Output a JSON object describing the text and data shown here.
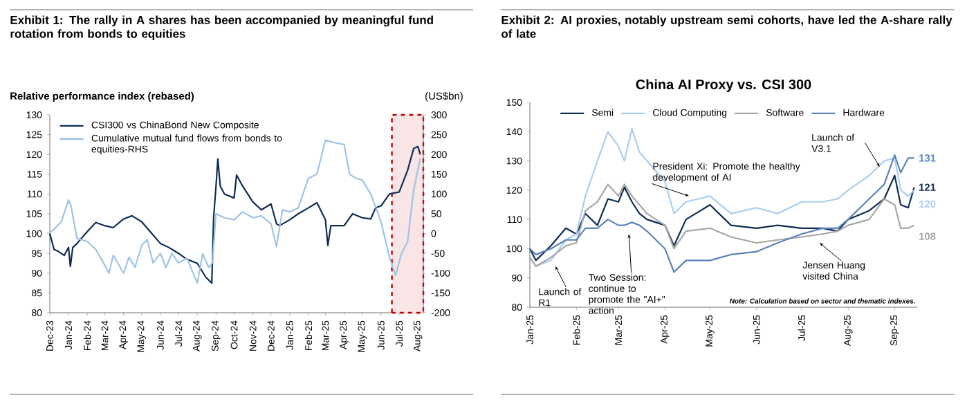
{
  "chart_data": [
    {
      "type": "line",
      "title": "Exhibit 1: The rally in A shares has been accompanied by meaningful fund rotation from bonds to equities",
      "ylabel": "Relative performance index (rebased)",
      "y2label": "(US$bn)",
      "xlim": [
        "2023-12-01",
        "2025-08-10"
      ],
      "xticks": [
        {
          "value": "2023-12-01",
          "label": "Dec-23"
        },
        {
          "value": "2024-01-01",
          "label": "Jan-24"
        },
        {
          "value": "2024-02-01",
          "label": "Feb-24"
        },
        {
          "value": "2024-03-01",
          "label": "Mar-24"
        },
        {
          "value": "2024-04-01",
          "label": "Apr-24"
        },
        {
          "value": "2024-05-01",
          "label": "May-24"
        },
        {
          "value": "2024-06-01",
          "label": "Jun-24"
        },
        {
          "value": "2024-07-01",
          "label": "Jul-24"
        },
        {
          "value": "2024-08-01",
          "label": "Aug-24"
        },
        {
          "value": "2024-09-01",
          "label": "Sep-24"
        },
        {
          "value": "2024-10-01",
          "label": "Oct-24"
        },
        {
          "value": "2024-11-01",
          "label": "Nov-24"
        },
        {
          "value": "2024-12-01",
          "label": "Dec-24"
        },
        {
          "value": "2025-01-01",
          "label": "Jan-25"
        },
        {
          "value": "2025-02-01",
          "label": "Feb-25"
        },
        {
          "value": "2025-03-01",
          "label": "Mar-25"
        },
        {
          "value": "2025-04-01",
          "label": "Apr-25"
        },
        {
          "value": "2025-05-01",
          "label": "May-25"
        },
        {
          "value": "2025-06-01",
          "label": "Jun-25"
        },
        {
          "value": "2025-07-01",
          "label": "Jul-25"
        },
        {
          "value": "2025-08-01",
          "label": "Aug-25"
        }
      ],
      "ylim": [
        80,
        130
      ],
      "yticks": [
        80,
        85,
        90,
        95,
        100,
        105,
        110,
        115,
        120,
        125,
        130
      ],
      "y2lim": [
        -200,
        300
      ],
      "y2ticks": [
        -200,
        -150,
        -100,
        -50,
        0,
        50,
        100,
        150,
        200,
        250,
        300
      ],
      "legend": "top left",
      "bands": [
        {
          "axis": "x",
          "from": "2025-06-19",
          "to": "2025-08-10",
          "color": "#c00000"
        }
      ],
      "series": [
        {
          "name": "CSI300 vs ChinaBond New Composite",
          "color": "#0f2b53",
          "x": [
            "2023-12-01",
            "2023-12-08",
            "2023-12-15",
            "2023-12-25",
            "2024-01-01",
            "2024-01-04",
            "2024-01-08",
            "2024-01-15",
            "2024-02-01",
            "2024-02-15",
            "2024-03-01",
            "2024-03-15",
            "2024-04-01",
            "2024-04-15",
            "2024-05-01",
            "2024-05-15",
            "2024-06-01",
            "2024-06-15",
            "2024-07-01",
            "2024-07-15",
            "2024-08-01",
            "2024-08-15",
            "2024-08-25",
            "2024-08-28",
            "2024-09-01",
            "2024-09-04",
            "2024-09-08",
            "2024-09-15",
            "2024-10-01",
            "2024-10-05",
            "2024-10-15",
            "2024-11-01",
            "2024-11-15",
            "2024-12-01",
            "2024-12-10",
            "2024-12-15",
            "2025-01-01",
            "2025-01-15",
            "2025-02-01",
            "2025-02-15",
            "2025-03-01",
            "2025-03-05",
            "2025-03-10",
            "2025-03-15",
            "2025-04-01",
            "2025-04-15",
            "2025-05-01",
            "2025-05-15",
            "2025-05-23",
            "2025-06-01",
            "2025-06-15",
            "2025-07-01",
            "2025-07-15",
            "2025-07-25",
            "2025-08-01",
            "2025-08-05"
          ],
          "values": [
            100,
            96,
            95.5,
            94.5,
            96.5,
            91.7,
            96.5,
            97.5,
            100.5,
            102.8,
            102,
            101.5,
            103.7,
            104.5,
            103,
            100.5,
            97.5,
            96.5,
            95,
            93.5,
            92.5,
            89,
            87.5,
            104,
            112,
            118.9,
            112,
            110,
            109,
            114.8,
            112,
            108,
            106,
            107.5,
            102.5,
            102,
            103.5,
            105,
            106.5,
            107.8,
            103.5,
            97,
            102,
            102,
            102,
            105,
            104,
            103.7,
            106.5,
            107,
            110,
            110.5,
            116,
            121.5,
            122,
            120
          ]
        },
        {
          "name": "Cumulative mutual fund flows from bonds to equities-RHS",
          "color": "#9dc3e6",
          "axis": "y2",
          "x": [
            "2023-12-01",
            "2023-12-10",
            "2023-12-20",
            "2024-01-01",
            "2024-01-05",
            "2024-01-15",
            "2024-02-01",
            "2024-02-15",
            "2024-03-01",
            "2024-03-08",
            "2024-03-15",
            "2024-04-01",
            "2024-04-10",
            "2024-04-20",
            "2024-05-01",
            "2024-05-10",
            "2024-05-20",
            "2024-06-01",
            "2024-06-10",
            "2024-06-20",
            "2024-07-01",
            "2024-07-15",
            "2024-08-01",
            "2024-08-10",
            "2024-08-20",
            "2024-08-26",
            "2024-09-01",
            "2024-09-15",
            "2024-10-01",
            "2024-10-15",
            "2024-11-01",
            "2024-11-15",
            "2024-12-01",
            "2024-12-10",
            "2024-12-20",
            "2025-01-01",
            "2025-01-15",
            "2025-02-01",
            "2025-02-15",
            "2025-03-01",
            "2025-03-15",
            "2025-04-01",
            "2025-04-10",
            "2025-04-20",
            "2025-05-01",
            "2025-05-15",
            "2025-06-01",
            "2025-06-15",
            "2025-06-25",
            "2025-07-05",
            "2025-07-15",
            "2025-07-25",
            "2025-08-05"
          ],
          "values": [
            2,
            14,
            30,
            85,
            70,
            -12,
            -20,
            -40,
            -80,
            -100,
            -55,
            -100,
            -60,
            -85,
            -30,
            -15,
            -74,
            -50,
            -86,
            -50,
            -74,
            -62,
            -125,
            -51,
            -86,
            -74,
            50,
            40,
            35,
            55,
            40,
            45,
            25,
            -33,
            60,
            55,
            65,
            140,
            150,
            236,
            230,
            225,
            150,
            140,
            135,
            100,
            30,
            -60,
            -105,
            -50,
            -20,
            110,
            190
          ]
        }
      ]
    },
    {
      "type": "line",
      "title": "Exhibit 2: AI proxies, notably upstream semi cohorts, have led the A-share rally of late",
      "subtitle": "China AI Proxy vs. CSI 300",
      "xlim": [
        "2025-01-01",
        "2025-09-16"
      ],
      "xticks": [
        {
          "value": "2025-01-01",
          "label": "Jan-25"
        },
        {
          "value": "2025-02-01",
          "label": "Feb-25"
        },
        {
          "value": "2025-03-01",
          "label": "Mar-25"
        },
        {
          "value": "2025-04-01",
          "label": "Apr-25"
        },
        {
          "value": "2025-05-01",
          "label": "May-25"
        },
        {
          "value": "2025-06-01",
          "label": "Jun-25"
        },
        {
          "value": "2025-07-01",
          "label": "Jul-25"
        },
        {
          "value": "2025-08-01",
          "label": "Aug-25"
        },
        {
          "value": "2025-09-01",
          "label": "Sep-25"
        }
      ],
      "ylim": [
        80,
        150
      ],
      "yticks": [
        80,
        90,
        100,
        110,
        120,
        130,
        140,
        150
      ],
      "legend": "top",
      "x": [
        "2025-01-01",
        "2025-01-05",
        "2025-01-15",
        "2025-01-25",
        "2025-02-01",
        "2025-02-07",
        "2025-02-15",
        "2025-02-22",
        "2025-03-01",
        "2025-03-05",
        "2025-03-10",
        "2025-03-15",
        "2025-03-20",
        "2025-04-01",
        "2025-04-07",
        "2025-04-15",
        "2025-05-01",
        "2025-05-15",
        "2025-06-01",
        "2025-06-15",
        "2025-07-01",
        "2025-07-15",
        "2025-07-25",
        "2025-08-01",
        "2025-08-15",
        "2025-08-25",
        "2025-09-01",
        "2025-09-05",
        "2025-09-10",
        "2025-09-14"
      ],
      "series": [
        {
          "name": "Semi",
          "color": "#0f2b53",
          "values": [
            100,
            96,
            101,
            107,
            105,
            112,
            108,
            117,
            116,
            121,
            116,
            112,
            110,
            108,
            101,
            110,
            115,
            108,
            107,
            108,
            107,
            107,
            106,
            110,
            113,
            117,
            125,
            115,
            114,
            121
          ],
          "value_labels": [
            null,
            null,
            null,
            null,
            null,
            null,
            null,
            null,
            null,
            null,
            null,
            null,
            null,
            null,
            null,
            null,
            null,
            null,
            null,
            null,
            null,
            null,
            null,
            null,
            null,
            null,
            null,
            null,
            null,
            "121"
          ]
        },
        {
          "name": "Cloud Computing",
          "color": "#a9cdef",
          "values": [
            97,
            94,
            96,
            103,
            105,
            118,
            130,
            140,
            135,
            130,
            141,
            133,
            130,
            123,
            112,
            116,
            118,
            112,
            114,
            112,
            116,
            116,
            117,
            120,
            125,
            130,
            131,
            120,
            118,
            120
          ],
          "value_labels": [
            null,
            null,
            null,
            null,
            null,
            null,
            null,
            null,
            null,
            null,
            null,
            null,
            null,
            null,
            null,
            null,
            null,
            null,
            null,
            null,
            null,
            null,
            null,
            null,
            null,
            null,
            null,
            null,
            null,
            "120"
          ]
        },
        {
          "name": "Software",
          "color": "#a6a6a6",
          "values": [
            97,
            94,
            97,
            101,
            102,
            113,
            116,
            122,
            118,
            122,
            118,
            115,
            112,
            108,
            100,
            106,
            107,
            104,
            102,
            103,
            104,
            105,
            106,
            108,
            110,
            117,
            115,
            107,
            107,
            108
          ],
          "value_labels": [
            null,
            null,
            null,
            null,
            null,
            null,
            null,
            null,
            null,
            null,
            null,
            null,
            null,
            null,
            null,
            null,
            null,
            null,
            null,
            null,
            null,
            null,
            null,
            null,
            null,
            null,
            null,
            null,
            null,
            "108"
          ]
        },
        {
          "name": "Hardware",
          "color": "#5b82bd",
          "values": [
            100,
            98,
            100,
            103,
            103,
            107,
            107,
            110,
            108,
            108,
            109,
            108,
            106,
            100,
            92,
            96,
            96,
            98,
            99,
            102,
            105,
            107,
            107,
            110,
            117,
            122,
            132,
            126,
            131,
            131
          ],
          "value_labels": [
            null,
            null,
            null,
            null,
            null,
            null,
            null,
            null,
            null,
            null,
            null,
            null,
            null,
            null,
            null,
            null,
            null,
            null,
            null,
            null,
            null,
            null,
            null,
            null,
            null,
            null,
            null,
            null,
            null,
            "131"
          ]
        }
      ],
      "annotations": [
        {
          "text": "Launch of R1",
          "x": "2025-01-18",
          "y": 94
        },
        {
          "text": "Two Session: continue to promote the \"AI+\" action",
          "x": "2025-03-08",
          "y": 105
        },
        {
          "text": "President Xi: Promote the healthy development of AI",
          "x": "2025-04-17",
          "y": 118
        },
        {
          "text": "Launch of V3.1",
          "x": "2025-08-22",
          "y": 128
        },
        {
          "text": "Jensen Huang visited China",
          "x": "2025-07-13",
          "y": 102
        },
        "Note: Calculation based on sector and thematic indexes."
      ]
    }
  ]
}
